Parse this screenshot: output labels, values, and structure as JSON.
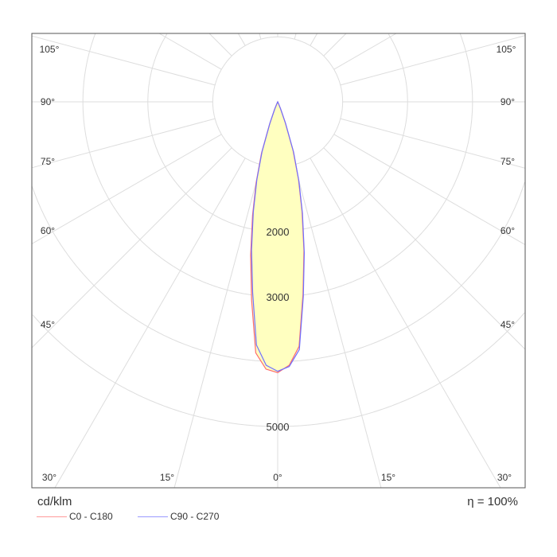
{
  "chart_data": {
    "type": "polar",
    "unit_label": "cd/klm",
    "efficiency_label": "η = 100%",
    "radial_ticks": [
      1000,
      2000,
      3000,
      4000,
      5000
    ],
    "radial_tick_labels": [
      "2000",
      "3000",
      "5000"
    ],
    "radial_tick_label_values": [
      2000,
      3000,
      5000
    ],
    "angle_labels_left": [
      "105°",
      "90°",
      "75°",
      "60°",
      "45°",
      "30°",
      "15°"
    ],
    "angle_labels_bottom": [
      "0°"
    ],
    "angle_labels_right": [
      "15°",
      "30°",
      "45°",
      "60°",
      "75°",
      "90°",
      "105°"
    ],
    "angle_step_deg": 15,
    "grid": true,
    "fill_color": "#ffffc0",
    "series": [
      {
        "name": "C0 - C180",
        "color": "#ff6b6b",
        "angles_deg": [
          0,
          2.5,
          5,
          7.5,
          10,
          12.5,
          15,
          17.5,
          20,
          22.5,
          25,
          30,
          90
        ],
        "intensity_left": [
          4170,
          4120,
          3880,
          3080,
          2400,
          1790,
          1280,
          830,
          370,
          130,
          35,
          5,
          0
        ],
        "intensity_right": [
          4150,
          4060,
          3780,
          2990,
          2330,
          1730,
          1240,
          790,
          340,
          115,
          30,
          5,
          0
        ]
      },
      {
        "name": "C90 - C270",
        "color": "#7070ff",
        "angles_deg": [
          0,
          2.5,
          5,
          7.5,
          10,
          12.5,
          15,
          17.5,
          20,
          22.5,
          25,
          30,
          90
        ],
        "intensity_left": [
          4150,
          4060,
          3760,
          2960,
          2320,
          1740,
          1240,
          800,
          350,
          120,
          30,
          5,
          0
        ],
        "intensity_right": [
          4150,
          4080,
          3830,
          3020,
          2360,
          1760,
          1260,
          810,
          355,
          120,
          30,
          5,
          0
        ]
      }
    ]
  }
}
